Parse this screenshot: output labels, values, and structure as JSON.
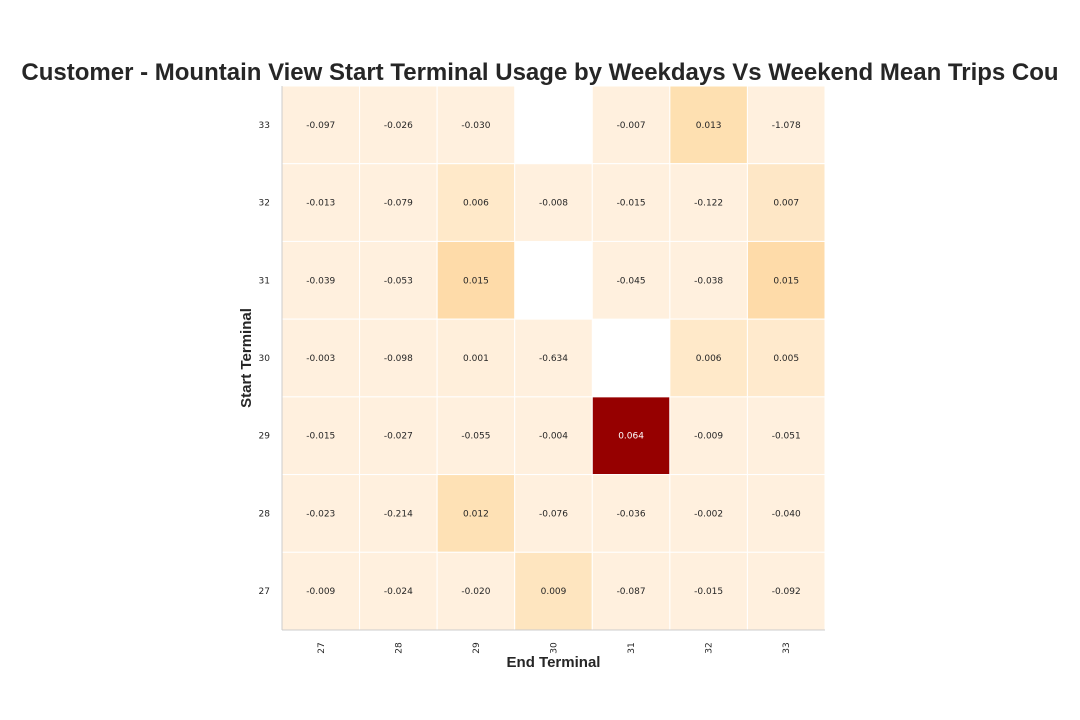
{
  "chart_data": {
    "type": "heatmap",
    "title": "Customer - Mountain View Start Terminal Usage by Weekdays Vs Weekend Mean Trips Cou",
    "xlabel": "End Terminal",
    "ylabel": "Start Terminal",
    "x_categories": [
      "27",
      "28",
      "29",
      "30",
      "31",
      "32",
      "33"
    ],
    "y_categories": [
      "33",
      "32",
      "31",
      "30",
      "29",
      "28",
      "27"
    ],
    "values": [
      [
        -0.097,
        -0.026,
        -0.03,
        null,
        -0.007,
        0.013,
        -1.078
      ],
      [
        -0.013,
        -0.079,
        0.006,
        -0.008,
        -0.015,
        -0.122,
        0.007
      ],
      [
        -0.039,
        -0.053,
        0.015,
        null,
        -0.045,
        -0.038,
        0.015
      ],
      [
        -0.003,
        -0.098,
        0.001,
        -0.634,
        null,
        0.006,
        0.005
      ],
      [
        -0.015,
        -0.027,
        -0.055,
        -0.004,
        0.064,
        -0.009,
        -0.051
      ],
      [
        -0.023,
        -0.214,
        0.012,
        -0.076,
        -0.036,
        -0.002,
        -0.04
      ],
      [
        -0.009,
        -0.024,
        -0.02,
        0.009,
        -0.087,
        -0.015,
        -0.092
      ]
    ],
    "labels": [
      [
        "-0.097",
        "-0.026",
        "-0.030",
        "",
        "-0.007",
        "0.013",
        "-1.078"
      ],
      [
        "-0.013",
        "-0.079",
        "0.006",
        "-0.008",
        "-0.015",
        "-0.122",
        "0.007"
      ],
      [
        "-0.039",
        "-0.053",
        "0.015",
        "",
        "-0.045",
        "-0.038",
        "0.015"
      ],
      [
        "-0.003",
        "-0.098",
        "0.001",
        "-0.634",
        "",
        "0.006",
        "0.005"
      ],
      [
        "-0.015",
        "-0.027",
        "-0.055",
        "-0.004",
        "0.064",
        "-0.009",
        "-0.051"
      ],
      [
        "-0.023",
        "-0.214",
        "0.012",
        "-0.076",
        "-0.036",
        "-0.002",
        "-0.040"
      ],
      [
        "-0.009",
        "-0.024",
        "-0.020",
        "0.009",
        "-0.087",
        "-0.015",
        "-0.092"
      ]
    ],
    "color_scale": "YlOrRd",
    "color_range": [
      0,
      0.064
    ],
    "grid": false,
    "legend": "none"
  }
}
